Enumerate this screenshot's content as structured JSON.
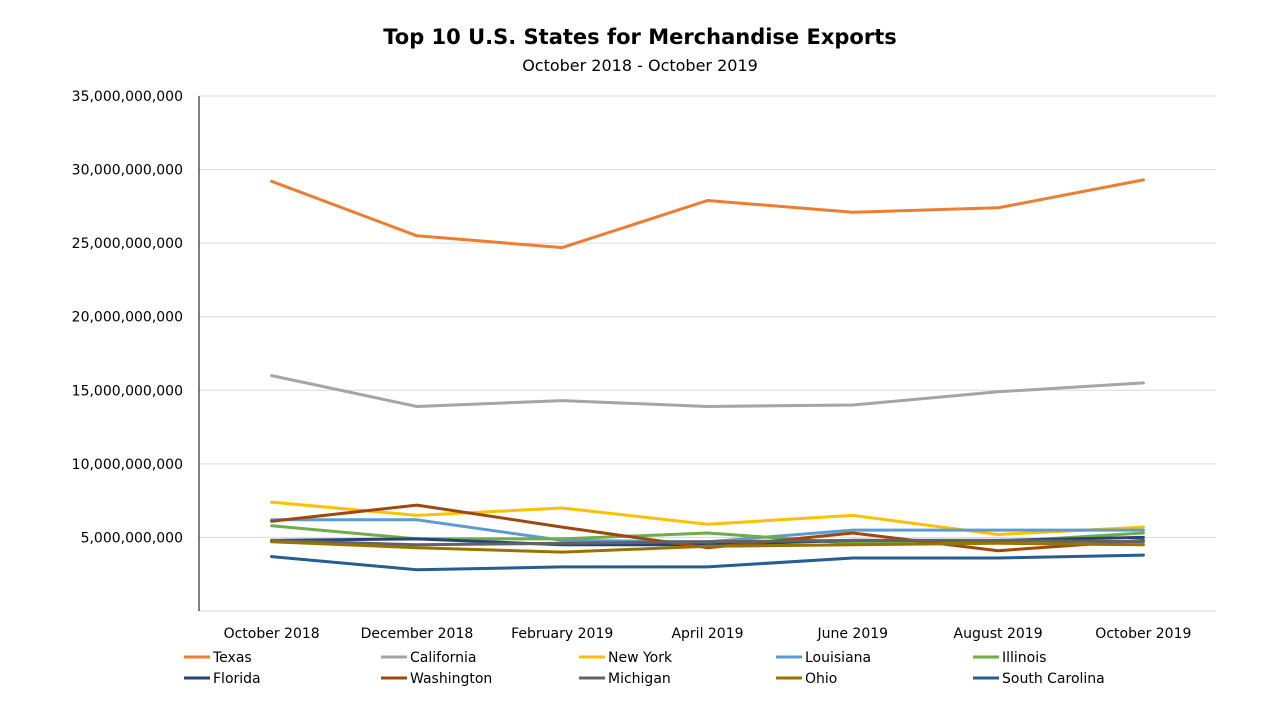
{
  "chart_data": {
    "type": "line",
    "title": "Top 10 U.S. States for Merchandise Exports",
    "subtitle": "October 2018 - October 2019",
    "xlabel": "",
    "ylabel": "",
    "ylim": [
      0,
      35000000000
    ],
    "yticks": [
      {
        "value": 35000000000,
        "label": "35,000,000,000"
      },
      {
        "value": 30000000000,
        "label": "30,000,000,000"
      },
      {
        "value": 25000000000,
        "label": "25,000,000,000"
      },
      {
        "value": 20000000000,
        "label": "20,000,000,000"
      },
      {
        "value": 15000000000,
        "label": "15,000,000,000"
      },
      {
        "value": 10000000000,
        "label": "10,000,000,000"
      },
      {
        "value": 5000000000,
        "label": "5,000,000,000"
      }
    ],
    "categories": [
      "October 2018",
      "December 2018",
      "February 2019",
      "April 2019",
      "June 2019",
      "August 2019",
      "October 2019"
    ],
    "grid": true,
    "legend_position": "bottom",
    "series": [
      {
        "name": "Texas",
        "color": "#ED7D31",
        "values": [
          29200000000,
          25500000000,
          24700000000,
          27900000000,
          27100000000,
          27400000000,
          29300000000
        ]
      },
      {
        "name": "California",
        "color": "#A5A5A5",
        "values": [
          16000000000,
          13900000000,
          14300000000,
          13900000000,
          14000000000,
          14900000000,
          15500000000
        ]
      },
      {
        "name": "New York",
        "color": "#FFC000",
        "values": [
          7400000000,
          6500000000,
          7000000000,
          5900000000,
          6500000000,
          5200000000,
          5700000000
        ]
      },
      {
        "name": "Louisiana",
        "color": "#5B9BD5",
        "values": [
          6200000000,
          6200000000,
          4800000000,
          4700000000,
          5500000000,
          5500000000,
          5500000000
        ]
      },
      {
        "name": "Illinois",
        "color": "#70AD47",
        "values": [
          5800000000,
          4900000000,
          4900000000,
          5300000000,
          4600000000,
          4700000000,
          5300000000
        ]
      },
      {
        "name": "Florida",
        "color": "#264478",
        "values": [
          4800000000,
          4900000000,
          4500000000,
          4500000000,
          4800000000,
          4800000000,
          5000000000
        ]
      },
      {
        "name": "Washington",
        "color": "#9E480E",
        "values": [
          6100000000,
          7200000000,
          5700000000,
          4300000000,
          5300000000,
          4100000000,
          4800000000
        ]
      },
      {
        "name": "Michigan",
        "color": "#636363",
        "values": [
          4800000000,
          4500000000,
          4600000000,
          4700000000,
          4800000000,
          4800000000,
          4700000000
        ]
      },
      {
        "name": "Ohio",
        "color": "#997300",
        "values": [
          4700000000,
          4300000000,
          4000000000,
          4400000000,
          4500000000,
          4600000000,
          4500000000
        ]
      },
      {
        "name": "South Carolina",
        "color": "#255E91",
        "values": [
          3700000000,
          2800000000,
          3000000000,
          3000000000,
          3600000000,
          3600000000,
          3800000000
        ]
      }
    ]
  }
}
